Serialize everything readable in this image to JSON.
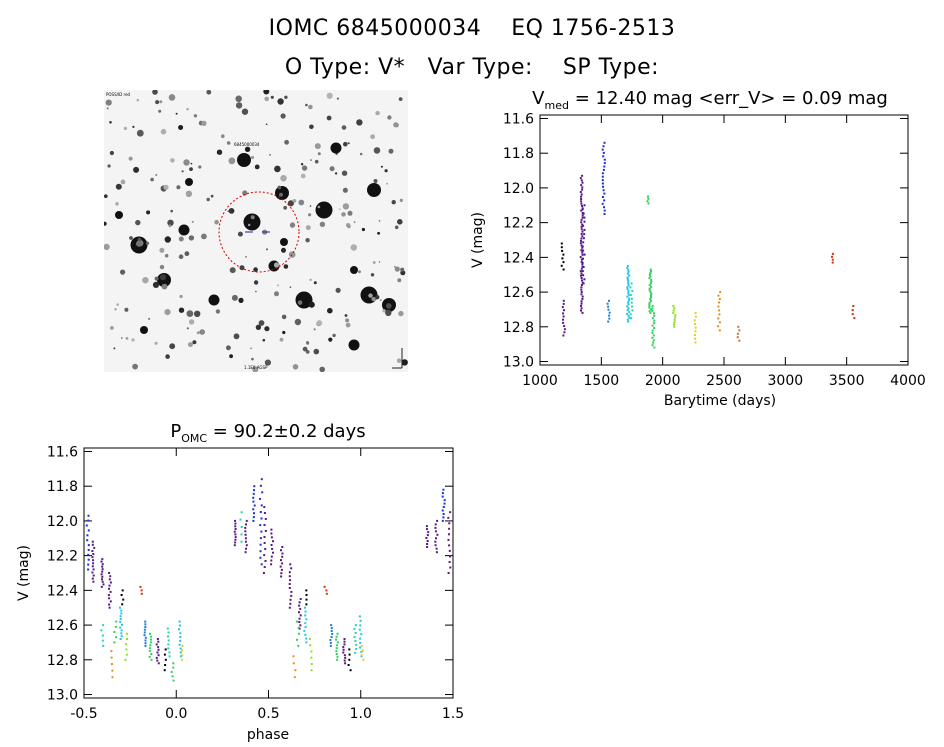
{
  "header": {
    "line1": "IOMC 6845000034    EQ 1756-2513",
    "line2": "O Type: V*   Var Type:    SP Type:"
  },
  "finder": {
    "top_left_label": "POSS/ID red",
    "center_label": "6845000034",
    "bottom_label": "1.1E0 AGSP"
  },
  "colors": {
    "black": "#000000",
    "purple": "#5a1a82",
    "indigo": "#3d1a9e",
    "blue": "#1f2ee0",
    "sky": "#1e7fd6",
    "cyan": "#20c8e0",
    "teal": "#20d8b0",
    "green": "#30d060",
    "lime": "#90e020",
    "yellow": "#e0d020",
    "orange": "#e09020",
    "darkorange": "#d07030",
    "red": "#d83010"
  },
  "chart_data": [
    {
      "type": "scatter",
      "title": "V_med = 12.40 mag <err_V> = 0.09 mag",
      "title_parts": {
        "v": "V",
        "sub": "med",
        "rest": " = 12.40 mag <err_V> = 0.09 mag"
      },
      "xlabel": "Barytime (days)",
      "ylabel": "V (mag)",
      "xlim": [
        1000,
        4000
      ],
      "ylim": [
        13.02,
        11.58
      ],
      "xticks": [
        "1000",
        "1500",
        "2000",
        "2500",
        "3000",
        "3500",
        "4000"
      ],
      "yticks": [
        "11.6",
        "11.8",
        "12.0",
        "12.2",
        "12.4",
        "12.6",
        "12.8",
        "13.0"
      ],
      "groups": [
        {
          "x": 1185,
          "ymin": 12.32,
          "ymax": 12.47,
          "color": "black",
          "n": 8
        },
        {
          "x": 1195,
          "ymin": 12.65,
          "ymax": 12.85,
          "color": "purple",
          "n": 12
        },
        {
          "x": 1340,
          "ymin": 11.93,
          "ymax": 12.72,
          "color": "purple",
          "n": 60
        },
        {
          "x": 1355,
          "ymin": 12.1,
          "ymax": 12.55,
          "color": "indigo",
          "n": 20
        },
        {
          "x": 1520,
          "ymin": 11.74,
          "ymax": 12.15,
          "color": "blue",
          "n": 22
        },
        {
          "x": 1560,
          "ymin": 12.65,
          "ymax": 12.77,
          "color": "sky",
          "n": 8
        },
        {
          "x": 1720,
          "ymin": 12.45,
          "ymax": 12.77,
          "color": "cyan",
          "n": 30
        },
        {
          "x": 1745,
          "ymin": 12.55,
          "ymax": 12.75,
          "color": "teal",
          "n": 10
        },
        {
          "x": 1880,
          "ymin": 12.05,
          "ymax": 12.09,
          "color": "green",
          "n": 4
        },
        {
          "x": 1900,
          "ymin": 12.47,
          "ymax": 12.72,
          "color": "green",
          "n": 26
        },
        {
          "x": 1925,
          "ymin": 12.68,
          "ymax": 12.92,
          "color": "green",
          "n": 18
        },
        {
          "x": 2095,
          "ymin": 12.68,
          "ymax": 12.8,
          "color": "lime",
          "n": 10
        },
        {
          "x": 2270,
          "ymin": 12.72,
          "ymax": 12.89,
          "color": "yellow",
          "n": 9
        },
        {
          "x": 2460,
          "ymin": 12.66,
          "ymax": 12.82,
          "color": "orange",
          "n": 8
        },
        {
          "x": 2460,
          "ymin": 12.6,
          "ymax": 12.64,
          "color": "orange",
          "n": 3
        },
        {
          "x": 2620,
          "ymin": 12.8,
          "ymax": 12.88,
          "color": "darkorange",
          "n": 5
        },
        {
          "x": 3380,
          "ymin": 12.38,
          "ymax": 12.43,
          "color": "red",
          "n": 4
        },
        {
          "x": 3555,
          "ymin": 12.68,
          "ymax": 12.75,
          "color": "red",
          "n": 4
        }
      ]
    },
    {
      "type": "scatter",
      "title": "P_OMC = 90.2±0.2 days",
      "title_parts": {
        "p": "P",
        "sub": "OMC",
        "rest": " = 90.2±0.2 days"
      },
      "xlabel": "phase",
      "ylabel": "V (mag)",
      "xlim": [
        -0.5,
        1.5
      ],
      "ylim": [
        13.02,
        11.58
      ],
      "xticks": [
        "-0.5",
        "0.0",
        "0.5",
        "1.0",
        "1.5"
      ],
      "yticks": [
        "11.6",
        "11.8",
        "12.0",
        "12.2",
        "12.4",
        "12.6",
        "12.8",
        "13.0"
      ],
      "groups": [
        {
          "x": -0.48,
          "ymin": 11.97,
          "ymax": 12.28,
          "color": "blue",
          "n": 12
        },
        {
          "x": -0.45,
          "ymin": 12.12,
          "ymax": 12.35,
          "color": "purple",
          "n": 14
        },
        {
          "x": -0.4,
          "ymin": 12.22,
          "ymax": 12.38,
          "color": "purple",
          "n": 12
        },
        {
          "x": -0.36,
          "ymin": 12.3,
          "ymax": 12.5,
          "color": "purple",
          "n": 12
        },
        {
          "x": -0.33,
          "ymin": 12.58,
          "ymax": 12.7,
          "color": "green",
          "n": 5
        },
        {
          "x": -0.3,
          "ymin": 12.5,
          "ymax": 12.68,
          "color": "cyan",
          "n": 12
        },
        {
          "x": -0.29,
          "ymin": 12.4,
          "ymax": 12.48,
          "color": "black",
          "n": 4
        },
        {
          "x": -0.4,
          "ymin": 12.6,
          "ymax": 12.72,
          "color": "teal",
          "n": 5
        },
        {
          "x": -0.35,
          "ymin": 12.75,
          "ymax": 12.9,
          "color": "orange",
          "n": 5
        },
        {
          "x": -0.27,
          "ymin": 12.65,
          "ymax": 12.8,
          "color": "lime",
          "n": 6
        },
        {
          "x": -0.19,
          "ymin": 12.38,
          "ymax": 12.42,
          "color": "red",
          "n": 3
        },
        {
          "x": -0.17,
          "ymin": 12.58,
          "ymax": 12.72,
          "color": "sky",
          "n": 10
        },
        {
          "x": -0.14,
          "ymin": 12.65,
          "ymax": 12.8,
          "color": "green",
          "n": 10
        },
        {
          "x": -0.1,
          "ymin": 12.68,
          "ymax": 12.82,
          "color": "purple",
          "n": 10
        },
        {
          "x": -0.06,
          "ymin": 12.74,
          "ymax": 12.86,
          "color": "black",
          "n": 5
        },
        {
          "x": -0.04,
          "ymin": 12.62,
          "ymax": 12.78,
          "color": "teal",
          "n": 8
        },
        {
          "x": -0.02,
          "ymin": 12.82,
          "ymax": 12.92,
          "color": "green",
          "n": 5
        },
        {
          "x": 0.02,
          "ymin": 12.58,
          "ymax": 12.78,
          "color": "cyan",
          "n": 10
        },
        {
          "x": 0.03,
          "ymin": 12.72,
          "ymax": 12.8,
          "color": "yellow",
          "n": 4
        },
        {
          "x": 0.32,
          "ymin": 12.0,
          "ymax": 12.14,
          "color": "purple",
          "n": 10
        },
        {
          "x": 0.35,
          "ymin": 11.95,
          "ymax": 12.12,
          "color": "teal",
          "n": 5
        },
        {
          "x": 0.38,
          "ymin": 12.0,
          "ymax": 12.18,
          "color": "purple",
          "n": 10
        },
        {
          "x": 0.42,
          "ymin": 11.8,
          "ymax": 12.0,
          "color": "blue",
          "n": 10
        },
        {
          "x": 0.46,
          "ymin": 11.76,
          "ymax": 12.25,
          "color": "blue",
          "n": 14
        },
        {
          "x": 0.48,
          "ymin": 11.92,
          "ymax": 12.3,
          "color": "purple",
          "n": 12
        },
        {
          "x": 0.52,
          "ymin": 12.05,
          "ymax": 12.25,
          "color": "purple",
          "n": 10
        },
        {
          "x": 0.57,
          "ymin": 12.15,
          "ymax": 12.32,
          "color": "purple",
          "n": 10
        },
        {
          "x": 0.62,
          "ymin": 12.25,
          "ymax": 12.5,
          "color": "purple",
          "n": 12
        },
        {
          "x": 0.67,
          "ymin": 12.45,
          "ymax": 12.62,
          "color": "purple",
          "n": 10
        },
        {
          "x": 0.66,
          "ymin": 12.58,
          "ymax": 12.72,
          "color": "green",
          "n": 5
        },
        {
          "x": 0.7,
          "ymin": 12.5,
          "ymax": 12.7,
          "color": "cyan",
          "n": 10
        },
        {
          "x": 0.71,
          "ymin": 12.4,
          "ymax": 12.48,
          "color": "black",
          "n": 4
        },
        {
          "x": 0.64,
          "ymin": 12.78,
          "ymax": 12.9,
          "color": "orange",
          "n": 4
        },
        {
          "x": 0.73,
          "ymin": 12.68,
          "ymax": 12.86,
          "color": "lime",
          "n": 6
        },
        {
          "x": 0.81,
          "ymin": 12.38,
          "ymax": 12.42,
          "color": "red",
          "n": 3
        },
        {
          "x": 0.84,
          "ymin": 12.6,
          "ymax": 12.72,
          "color": "sky",
          "n": 8
        },
        {
          "x": 0.87,
          "ymin": 12.65,
          "ymax": 12.8,
          "color": "green",
          "n": 10
        },
        {
          "x": 0.91,
          "ymin": 12.68,
          "ymax": 12.82,
          "color": "purple",
          "n": 10
        },
        {
          "x": 0.94,
          "ymin": 12.74,
          "ymax": 12.86,
          "color": "black",
          "n": 5
        },
        {
          "x": 0.97,
          "ymin": 12.6,
          "ymax": 12.76,
          "color": "teal",
          "n": 8
        },
        {
          "x": 1.0,
          "ymin": 12.55,
          "ymax": 12.78,
          "color": "cyan",
          "n": 10
        },
        {
          "x": 1.01,
          "ymin": 12.72,
          "ymax": 12.8,
          "color": "yellow",
          "n": 4
        },
        {
          "x": 1.36,
          "ymin": 12.03,
          "ymax": 12.15,
          "color": "purple",
          "n": 8
        },
        {
          "x": 1.41,
          "ymin": 12.0,
          "ymax": 12.18,
          "color": "purple",
          "n": 10
        },
        {
          "x": 1.45,
          "ymin": 11.82,
          "ymax": 12.0,
          "color": "blue",
          "n": 10
        },
        {
          "x": 1.48,
          "ymin": 11.95,
          "ymax": 12.3,
          "color": "purple",
          "n": 12
        }
      ]
    }
  ]
}
